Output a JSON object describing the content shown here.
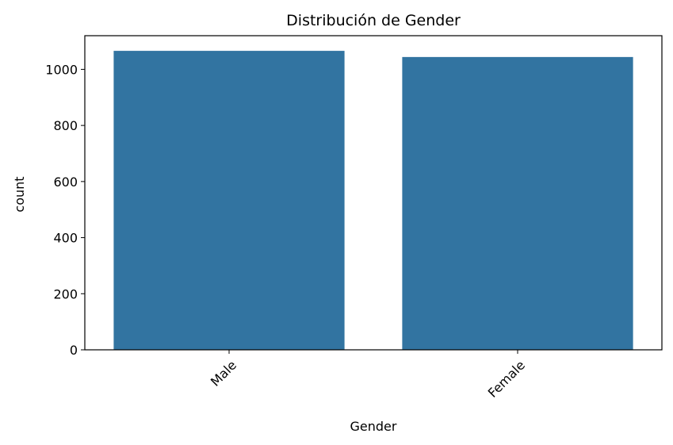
{
  "chart_data": {
    "type": "bar",
    "title": "Distribución de Gender",
    "xlabel": "Gender",
    "ylabel": "count",
    "categories": [
      "Male",
      "Female"
    ],
    "values": [
      1066,
      1044
    ],
    "ylim": [
      0,
      1120
    ],
    "yticks": [
      0,
      200,
      400,
      600,
      800,
      1000
    ],
    "xtick_rotation_deg": 45,
    "grid": false,
    "legend": "none",
    "bar_color": "#3274a1"
  }
}
